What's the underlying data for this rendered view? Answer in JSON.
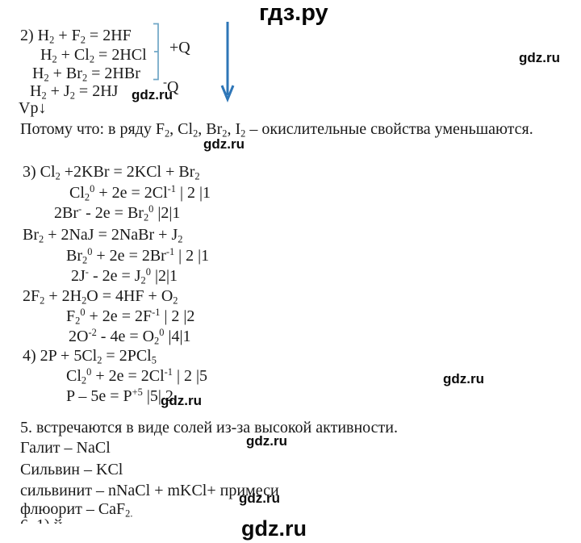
{
  "header": {
    "site_title": "гдз.ру"
  },
  "watermark_label": "gdz.ru",
  "colors": {
    "arrow_blue": "#2e76b7",
    "bracket_blue": "#6fa6c6"
  },
  "section2": {
    "equations": [
      "2) H_2_ + F_2_ = 2HF",
      "H_2_ + Cl_2_ = 2HCl",
      "H_2_ + Br_2_ = 2HBr",
      "H_2_ + J_2_ = 2HJ"
    ],
    "exothermic_label": "+Q",
    "endothermic_label": "^-^Q",
    "rate_note": "Vp↓",
    "explanation": "Потому что: в ряду F_2_, Cl_2_, Br_2_, I_2_ – окислительные свойства уменьшаются."
  },
  "section3": {
    "equations": [
      "3) Cl_2_ +2KBr = 2KCl + Br_2_",
      "Cl_2_^0^ + 2e = 2Cl^-1^ | 2 |1",
      "2Br^-^ - 2e = Br_2_^0^ |2|1",
      "Br_2_ + 2NaJ = 2NaBr + J_2_",
      "Br_2_^0^ + 2e = 2Br^-1^ | 2 |1",
      "2J^-^ - 2e = J_2_^0^ |2|1",
      "2F_2_ + 2H_2_O = 4HF + O_2_",
      "F_2_^0^ + 2e = 2F^-1^ | 2 |2",
      "2O^-2^ - 4e = O_2_^0^ |4|1"
    ]
  },
  "section4": {
    "equations": [
      "4) 2P + 5Cl_2_ = 2PCl_5_",
      "Cl_2_^0^ + 2e = 2Cl^-1^ | 2 |5",
      "P – 5e = P^+5^ |5| 2"
    ]
  },
  "section5": {
    "heading": "5. встречаются в виде солей из-за высокой активности.",
    "minerals": [
      "Галит – NaCl",
      "Сильвин – KCl",
      "сильвинит – nNaCl + mKCl+ примеси",
      "флюорит – CaF_2._"
    ]
  },
  "cutoff_fragment": "6. 1)      й"
}
